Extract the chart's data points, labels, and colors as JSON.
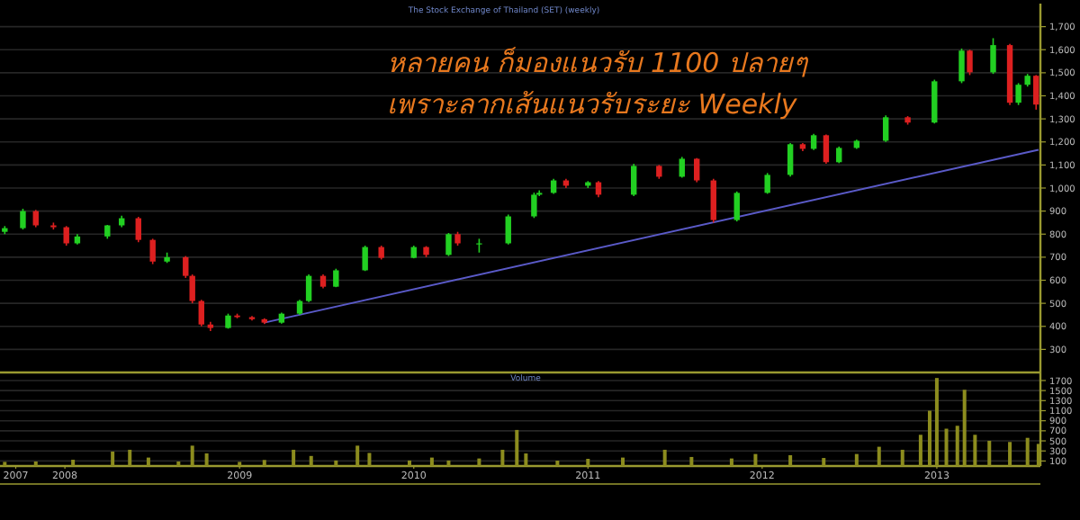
{
  "chart_data": [
    {
      "type": "candlestick",
      "title": "The Stock Exchange of Thailand (SET) (weekly)",
      "annotations": [
        "หลายคน ก็มองแนวรับ 1100 ปลายๆ",
        "เพราะลากเส้นแนวรับระยะ Weekly"
      ],
      "x": [
        "2007-08-28",
        "2007-10-05",
        "2007-11-01",
        "2007-12-08",
        "2008-01-04",
        "2008-01-27",
        "2008-03-30",
        "2008-04-29",
        "2008-06-03",
        "2008-07-03",
        "2008-08-02",
        "2008-09-10",
        "2008-09-24",
        "2008-10-13",
        "2008-11-01",
        "2008-12-08",
        "2008-12-27",
        "2009-01-27",
        "2009-02-22",
        "2009-03-30",
        "2009-05-07",
        "2009-05-26",
        "2009-06-25",
        "2009-07-22",
        "2009-09-21",
        "2009-10-25",
        "2010-01-01",
        "2010-01-27",
        "2010-03-15",
        "2010-04-03",
        "2010-05-18",
        "2010-07-18",
        "2010-09-10",
        "2010-09-21",
        "2010-10-21",
        "2010-11-16",
        "2011-01-01",
        "2011-01-23",
        "2011-04-07",
        "2011-05-30",
        "2011-07-17",
        "2011-08-17",
        "2011-09-21",
        "2011-11-09",
        "2012-01-12",
        "2012-02-29",
        "2012-03-26",
        "2012-04-18",
        "2012-05-14",
        "2012-06-10",
        "2012-07-17",
        "2012-09-16",
        "2012-11-01",
        "2012-12-27",
        "2013-02-22",
        "2013-03-11",
        "2013-04-29",
        "2013-06-03",
        "2013-06-21",
        "2013-07-10",
        "2013-07-28"
      ],
      "ohlc": [
        [
          810,
          835,
          800,
          826
        ],
        [
          826,
          910,
          820,
          900
        ],
        [
          900,
          905,
          830,
          838
        ],
        [
          838,
          850,
          820,
          830
        ],
        [
          830,
          835,
          750,
          760
        ],
        [
          760,
          800,
          755,
          790
        ],
        [
          790,
          840,
          780,
          838
        ],
        [
          838,
          880,
          830,
          869
        ],
        [
          869,
          875,
          765,
          775
        ],
        [
          775,
          780,
          670,
          681
        ],
        [
          681,
          720,
          675,
          700
        ],
        [
          700,
          705,
          610,
          619
        ],
        [
          619,
          625,
          500,
          510
        ],
        [
          510,
          515,
          400,
          408
        ],
        [
          408,
          420,
          380,
          393
        ],
        [
          393,
          455,
          390,
          447
        ],
        [
          447,
          455,
          435,
          440
        ],
        [
          440,
          445,
          425,
          431
        ],
        [
          431,
          435,
          410,
          416
        ],
        [
          416,
          460,
          412,
          455
        ],
        [
          455,
          515,
          450,
          510
        ],
        [
          510,
          625,
          505,
          619
        ],
        [
          619,
          625,
          565,
          572
        ],
        [
          572,
          650,
          570,
          643
        ],
        [
          643,
          750,
          640,
          744
        ],
        [
          744,
          750,
          690,
          697
        ],
        [
          697,
          750,
          695,
          744
        ],
        [
          744,
          748,
          700,
          710
        ],
        [
          710,
          805,
          705,
          800
        ],
        [
          800,
          810,
          750,
          760
        ],
        [
          760,
          780,
          720,
          760
        ],
        [
          760,
          885,
          755,
          877
        ],
        [
          877,
          980,
          870,
          971
        ],
        [
          971,
          990,
          965,
          979
        ],
        [
          979,
          1040,
          975,
          1033
        ],
        [
          1033,
          1040,
          1000,
          1010
        ],
        [
          1010,
          1030,
          1000,
          1025
        ],
        [
          1025,
          1030,
          960,
          971
        ],
        [
          971,
          1105,
          965,
          1096
        ],
        [
          1096,
          1100,
          1040,
          1049
        ],
        [
          1049,
          1135,
          1045,
          1127
        ],
        [
          1127,
          1130,
          1025,
          1033
        ],
        [
          1033,
          1040,
          850,
          861
        ],
        [
          861,
          985,
          855,
          979
        ],
        [
          979,
          1065,
          975,
          1057
        ],
        [
          1057,
          1195,
          1050,
          1190
        ],
        [
          1190,
          1195,
          1160,
          1170
        ],
        [
          1170,
          1235,
          1165,
          1229
        ],
        [
          1229,
          1232,
          1105,
          1112
        ],
        [
          1112,
          1180,
          1108,
          1174
        ],
        [
          1174,
          1210,
          1170,
          1205
        ],
        [
          1205,
          1315,
          1200,
          1307
        ],
        [
          1307,
          1312,
          1275,
          1284
        ],
        [
          1284,
          1470,
          1280,
          1463
        ],
        [
          1463,
          1605,
          1455,
          1596
        ],
        [
          1596,
          1600,
          1490,
          1502
        ],
        [
          1502,
          1650,
          1495,
          1620
        ],
        [
          1620,
          1625,
          1360,
          1370
        ],
        [
          1370,
          1455,
          1360,
          1448
        ],
        [
          1448,
          1495,
          1440,
          1487
        ],
        [
          1487,
          1490,
          1340,
          1362
        ]
      ],
      "series": [
        {
          "type": "line",
          "x": [
            "2009-02-22",
            "2013-08-02"
          ],
          "values": [
            416,
            1166
          ],
          "color": "#5a5ac8"
        }
      ],
      "xlim": [
        "2007-08-18",
        "2013-08-06"
      ],
      "ylim": [
        200,
        1800
      ],
      "yticks": [
        300,
        400,
        500,
        600,
        700,
        800,
        900,
        {
          "value": 1000,
          "label": "1,000"
        },
        {
          "value": 1100,
          "label": "1,100"
        },
        {
          "value": 1200,
          "label": "1,200"
        },
        {
          "value": 1300,
          "label": "1,300"
        },
        {
          "value": 1400,
          "label": "1,400"
        },
        {
          "value": 1500,
          "label": "1,500"
        },
        {
          "value": 1600,
          "label": "1,600"
        },
        {
          "value": 1700,
          "label": "1,700"
        }
      ],
      "grid": "y",
      "tick_labels": "y"
    },
    {
      "type": "bar",
      "title": "Volume",
      "color": "#8c8c1e",
      "x": [
        "2007-08-28",
        "2007-11-01",
        "2008-01-18",
        "2008-04-10",
        "2008-05-16",
        "2008-06-24",
        "2008-08-26",
        "2008-09-24",
        "2008-10-24",
        "2009-01-01",
        "2009-02-22",
        "2009-04-24",
        "2009-05-31",
        "2009-07-22",
        "2009-09-05",
        "2009-09-30",
        "2009-12-23",
        "2010-02-08",
        "2010-03-15",
        "2010-05-18",
        "2010-07-06",
        "2010-08-05",
        "2010-08-24",
        "2010-10-29",
        "2011-01-01",
        "2011-03-15",
        "2011-06-11",
        "2011-08-06",
        "2011-10-29",
        "2011-12-18",
        "2012-02-29",
        "2012-05-09",
        "2012-07-17",
        "2012-09-02",
        "2012-10-21",
        "2012-11-28",
        "2012-12-17",
        "2013-01-01",
        "2013-01-21",
        "2013-02-13",
        "2013-02-28",
        "2013-03-22",
        "2013-04-21",
        "2013-06-03",
        "2013-07-10",
        "2013-08-02"
      ],
      "values": [
        82,
        90,
        125,
        287,
        323,
        168,
        90,
        405,
        251,
        82,
        120,
        323,
        200,
        110,
        405,
        260,
        110,
        168,
        110,
        150,
        323,
        717,
        250,
        107,
        143,
        168,
        323,
        180,
        150,
        239,
        215,
        160,
        239,
        383,
        323,
        621,
        1100,
        1750,
        742,
        800,
        1516,
        621,
        502,
        478,
        560,
        440
      ],
      "xlim": [
        "2007-08-18",
        "2013-08-06"
      ],
      "xticks": [
        {
          "value": "2007-09-20",
          "label": "2007"
        },
        {
          "value": "2008-01-01",
          "label": "2008"
        },
        {
          "value": "2009-01-01",
          "label": "2009"
        },
        {
          "value": "2010-01-01",
          "label": "2010"
        },
        {
          "value": "2011-01-01",
          "label": "2011"
        },
        {
          "value": "2012-01-01",
          "label": "2012"
        },
        {
          "value": "2013-01-01",
          "label": "2013"
        }
      ],
      "ylim": [
        0,
        1860
      ],
      "yticks": [
        100,
        300,
        500,
        700,
        900,
        1100,
        1300,
        1500,
        1700
      ],
      "grid": "y"
    }
  ]
}
